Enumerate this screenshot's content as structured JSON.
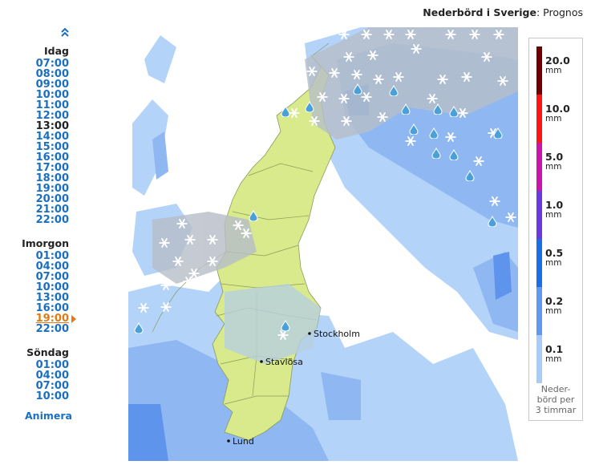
{
  "header": {
    "title": "Nederbörd i Sverige",
    "separator": ":",
    "subtitle": "Prognos"
  },
  "timeline": {
    "scroll_up_icon": "double-chevron-up",
    "days": [
      {
        "label": "Idag",
        "slots": [
          "07:00",
          "08:00",
          "09:00",
          "10:00",
          "11:00",
          "12:00",
          "13:00",
          "14:00",
          "15:00",
          "16:00",
          "17:00",
          "18:00",
          "19:00",
          "20:00",
          "21:00",
          "22:00"
        ]
      },
      {
        "label": "Imorgon",
        "slots": [
          "01:00",
          "04:00",
          "07:00",
          "10:00",
          "13:00",
          "16:00",
          "19:00",
          "22:00"
        ]
      },
      {
        "label": "Söndag",
        "slots": [
          "01:00",
          "04:00",
          "07:00",
          "10:00"
        ]
      }
    ],
    "current_time": "13:00",
    "selected": {
      "day": "Imorgon",
      "time": "19:00"
    },
    "animate_label": "Animera"
  },
  "map": {
    "cities": [
      "Stockholm",
      "Stavlösa",
      "Lund"
    ]
  },
  "legend": {
    "items": [
      {
        "value": "20.0",
        "unit": "mm",
        "color": "#6e0000"
      },
      {
        "value": "10.0",
        "unit": "mm",
        "color": "#ff1414"
      },
      {
        "value": "5.0",
        "unit": "mm",
        "color": "#cc14aa"
      },
      {
        "value": "1.0",
        "unit": "mm",
        "color": "#6a3ae0"
      },
      {
        "value": "0.5",
        "unit": "mm",
        "color": "#1a6ee6"
      },
      {
        "value": "0.2",
        "unit": "mm",
        "color": "#5f9af0"
      },
      {
        "value": "0.1",
        "unit": "mm",
        "color": "#a9ccf7"
      }
    ],
    "note": [
      "Neder-",
      "börd per",
      "3 timmar"
    ]
  },
  "colors": {
    "land": "#d9ea8c",
    "sea_precip_light": "#b3d3f8",
    "sea_precip_mid": "#8fb8f3",
    "sea_precip_heavy": "#5f94ec",
    "snow_cloud": "#b7bec8",
    "link": "#1a6fc0",
    "selected": "#e07b14"
  }
}
